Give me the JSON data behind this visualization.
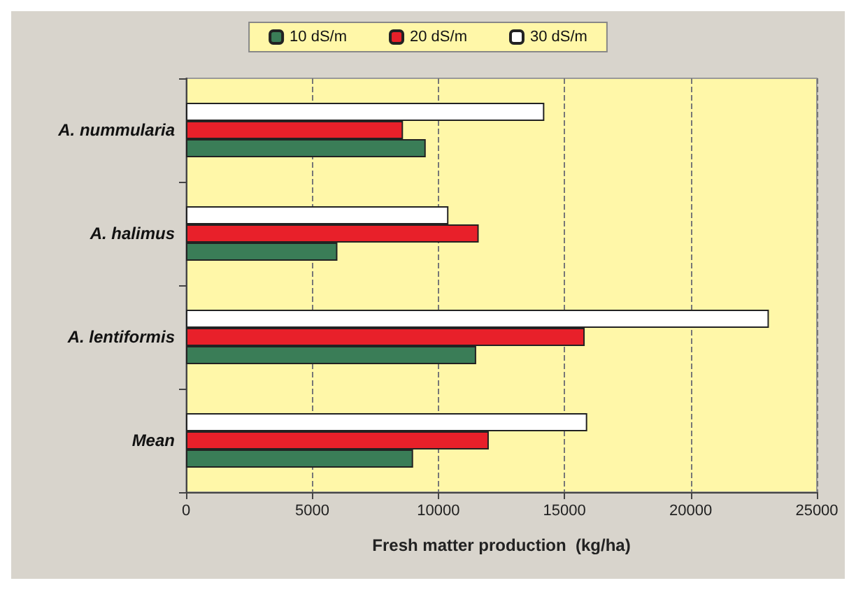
{
  "chart_data": {
    "type": "bar",
    "orientation": "horizontal",
    "xlabel": "Fresh matter production  (kg/ha)",
    "categories": [
      "A. nummularia",
      "A. halimus",
      "A. lentiformis",
      "Mean"
    ],
    "series": [
      {
        "name": "10 dS/m",
        "color": "#3a7d57",
        "values": [
          9500,
          6000,
          11500,
          9000
        ]
      },
      {
        "name": "20 dS/m",
        "color": "#e8202a",
        "values": [
          8600,
          11600,
          15800,
          12000
        ]
      },
      {
        "name": "30 dS/m",
        "color": "#ffffff",
        "values": [
          14200,
          10400,
          23100,
          15900
        ]
      }
    ],
    "xlim": [
      0,
      25000
    ],
    "xticks": [
      0,
      5000,
      10000,
      15000,
      20000,
      25000
    ],
    "grid": "x",
    "legend": "top"
  }
}
